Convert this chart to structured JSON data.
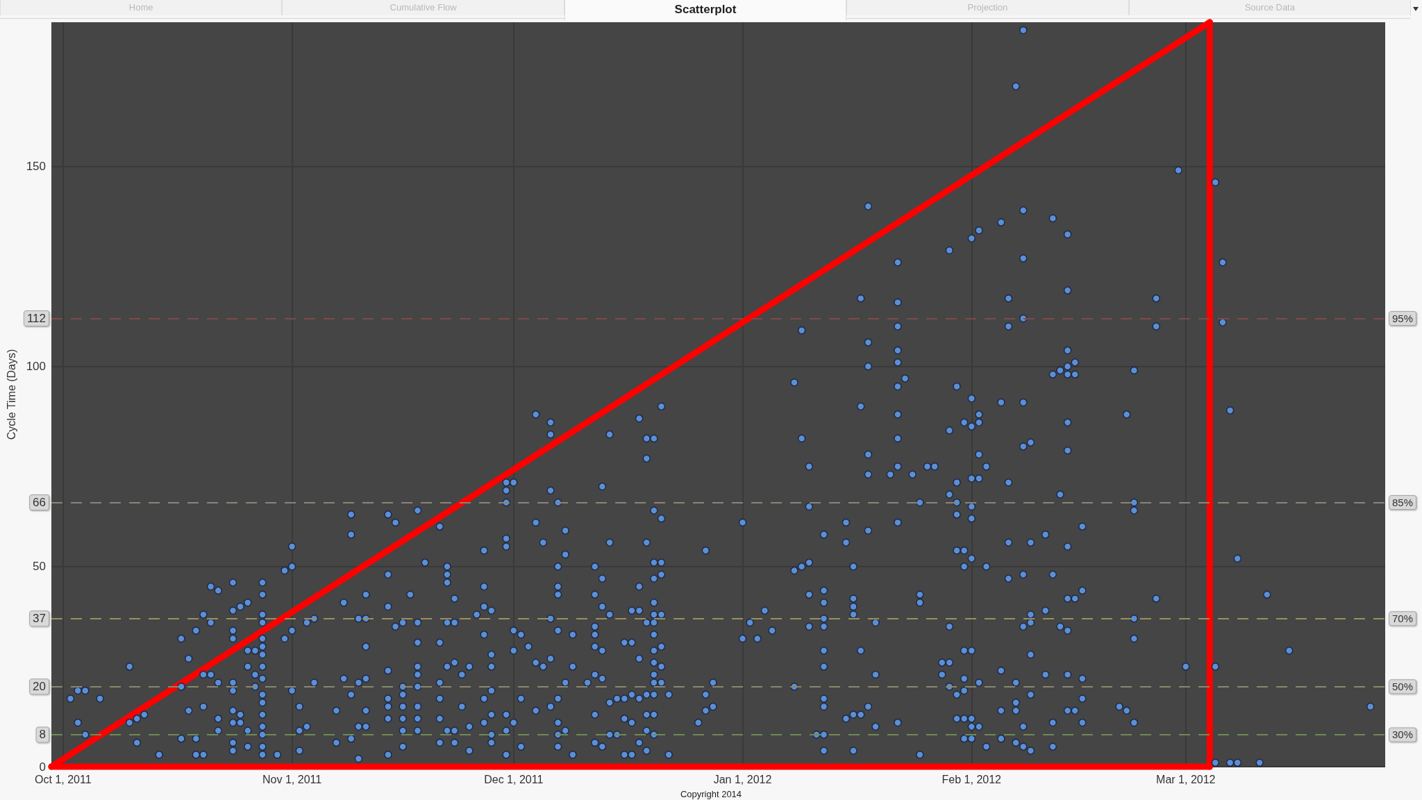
{
  "chart_data": {
    "type": "scatter",
    "title": "Scatterplot",
    "ylabel": "Cycle Time (Days)",
    "annotations": [
      "Home",
      "Cumulative Flow",
      "Projection",
      "Source Data",
      "Copyright 2014",
      {
        "text": "95%",
        "x": "2012-03-28",
        "y": 112
      },
      {
        "text": "85%",
        "x": "2012-03-28",
        "y": 66
      },
      {
        "text": "70%",
        "x": "2012-03-28",
        "y": 37
      },
      {
        "text": "50%",
        "x": "2012-03-28",
        "y": 20
      },
      {
        "text": "30%",
        "x": "2012-03-28",
        "y": 8
      }
    ],
    "xlim": [
      "2011-09-29T10:00",
      "2012-03-28"
    ],
    "xticks": [
      {
        "value": "2011-10-01",
        "label": "Oct 1, 2011"
      },
      {
        "value": "2011-11-01",
        "label": "Nov 1, 2011"
      },
      {
        "value": "2011-12-01",
        "label": "Dec 1, 2011"
      },
      {
        "value": "2012-01-01",
        "label": "Jan 1, 2012"
      },
      {
        "value": "2012-02-01",
        "label": "Feb 1, 2012"
      },
      {
        "value": "2012-03-01",
        "label": "Mar 1, 2012"
      }
    ],
    "ylim": [
      0,
      186
    ],
    "yticks": [
      0,
      50,
      100,
      150
    ],
    "grid": true,
    "marker": "circle",
    "ref_lines": [
      {
        "axis": "y",
        "value": 112,
        "label": "112",
        "color": "#7d4b4b",
        "line_style": "dashed"
      },
      {
        "axis": "y",
        "value": 66,
        "label": "66",
        "color": "#8a8478",
        "line_style": "dashed"
      },
      {
        "axis": "y",
        "value": 37,
        "label": "37",
        "color": "#9a9060",
        "line_style": "dashed"
      },
      {
        "axis": "y",
        "value": 20,
        "label": "20",
        "color": "#88876e",
        "line_style": "dashed"
      },
      {
        "axis": "y",
        "value": 8,
        "label": "8",
        "color": "#6f8a55",
        "line_style": "dashed"
      }
    ],
    "series": [
      {
        "color": "#5b8fd6",
        "x": [
          "2011-10-02",
          "2011-10-03",
          "2011-10-03",
          "2011-10-04",
          "2011-10-04",
          "2011-10-06",
          "2011-10-10",
          "2011-10-10",
          "2011-10-11",
          "2011-10-11",
          "2011-10-12",
          "2011-10-14",
          "2011-10-17",
          "2011-10-17",
          "2011-10-17",
          "2011-10-18",
          "2011-10-18",
          "2011-10-19",
          "2011-10-19",
          "2011-10-19",
          "2011-10-20",
          "2011-10-20",
          "2011-10-20",
          "2011-10-20",
          "2011-10-21",
          "2011-10-21",
          "2011-10-21",
          "2011-10-22",
          "2011-10-22",
          "2011-10-22",
          "2011-10-22",
          "2011-10-24",
          "2011-10-24",
          "2011-10-24",
          "2011-10-24",
          "2011-10-24",
          "2011-10-24",
          "2011-10-24",
          "2011-10-24",
          "2011-10-24",
          "2011-10-24",
          "2011-10-25",
          "2011-10-25",
          "2011-10-25",
          "2011-10-26",
          "2011-10-26",
          "2011-10-26",
          "2011-10-26",
          "2011-10-26",
          "2011-10-27",
          "2011-10-27",
          "2011-10-27",
          "2011-10-28",
          "2011-10-28",
          "2011-10-28",
          "2011-10-28",
          "2011-10-28",
          "2011-10-28",
          "2011-10-28",
          "2011-10-28",
          "2011-10-28",
          "2011-10-28",
          "2011-10-28",
          "2011-10-28",
          "2011-10-28",
          "2011-10-28",
          "2011-10-28",
          "2011-10-28",
          "2011-10-30",
          "2011-10-31",
          "2011-10-31",
          "2011-11-01",
          "2011-11-01",
          "2011-11-01",
          "2011-11-01",
          "2011-11-02",
          "2011-11-02",
          "2011-11-02",
          "2011-11-03",
          "2011-11-03",
          "2011-11-04",
          "2011-11-04",
          "2011-11-07",
          "2011-11-07",
          "2011-11-08",
          "2011-11-08",
          "2011-11-09",
          "2011-11-09",
          "2011-11-09",
          "2011-11-09",
          "2011-11-10",
          "2011-11-10",
          "2011-11-10",
          "2011-11-10",
          "2011-11-11",
          "2011-11-11",
          "2011-11-11",
          "2011-11-11",
          "2011-11-11",
          "2011-11-11",
          "2011-11-14",
          "2011-11-14",
          "2011-11-14",
          "2011-11-14",
          "2011-11-14",
          "2011-11-14",
          "2011-11-14",
          "2011-11-14",
          "2011-11-15",
          "2011-11-15",
          "2011-11-16",
          "2011-11-16",
          "2011-11-16",
          "2011-11-16",
          "2011-11-16",
          "2011-11-16",
          "2011-11-16",
          "2011-11-17",
          "2011-11-18",
          "2011-11-18",
          "2011-11-18",
          "2011-11-18",
          "2011-11-18",
          "2011-11-18",
          "2011-11-18",
          "2011-11-18",
          "2011-11-18",
          "2011-11-19",
          "2011-11-21",
          "2011-11-21",
          "2011-11-21",
          "2011-11-21",
          "2011-11-21",
          "2011-11-21",
          "2011-11-22",
          "2011-11-22",
          "2011-11-22",
          "2011-11-22",
          "2011-11-22",
          "2011-11-22",
          "2011-11-23",
          "2011-11-23",
          "2011-11-23",
          "2011-11-23",
          "2011-11-23",
          "2011-11-24",
          "2011-11-24",
          "2011-11-25",
          "2011-11-25",
          "2011-11-25",
          "2011-11-26",
          "2011-11-27",
          "2011-11-27",
          "2011-11-27",
          "2011-11-27",
          "2011-11-27",
          "2011-11-27",
          "2011-11-28",
          "2011-11-28",
          "2011-11-28",
          "2011-11-28",
          "2011-11-28",
          "2011-11-28",
          "2011-11-28",
          "2011-11-30",
          "2011-11-30",
          "2011-11-30",
          "2011-11-30",
          "2011-11-30",
          "2011-11-30",
          "2011-11-30",
          "2011-11-30",
          "2011-12-01",
          "2011-12-01",
          "2011-12-01",
          "2011-12-01",
          "2011-12-02",
          "2011-12-02",
          "2011-12-02",
          "2011-12-03",
          "2011-12-04",
          "2011-12-04",
          "2011-12-04",
          "2011-12-04",
          "2011-12-05",
          "2011-12-05",
          "2011-12-06",
          "2011-12-06",
          "2011-12-06",
          "2011-12-06",
          "2011-12-06",
          "2011-12-06",
          "2011-12-07",
          "2011-12-07",
          "2011-12-07",
          "2011-12-07",
          "2011-12-07",
          "2011-12-07",
          "2011-12-07",
          "2011-12-07",
          "2011-12-07",
          "2011-12-08",
          "2011-12-08",
          "2011-12-08",
          "2011-12-08",
          "2011-12-09",
          "2011-12-09",
          "2011-12-09",
          "2011-12-11",
          "2011-12-12",
          "2011-12-12",
          "2011-12-12",
          "2011-12-12",
          "2011-12-12",
          "2011-12-12",
          "2011-12-12",
          "2011-12-12",
          "2011-12-13",
          "2011-12-13",
          "2011-12-13",
          "2011-12-13",
          "2011-12-13",
          "2011-12-13",
          "2011-12-14",
          "2011-12-14",
          "2011-12-14",
          "2011-12-14",
          "2011-12-14",
          "2011-12-15",
          "2011-12-15",
          "2011-12-16",
          "2011-12-16",
          "2011-12-16",
          "2011-12-16",
          "2011-12-17",
          "2011-12-17",
          "2011-12-17",
          "2011-12-17",
          "2011-12-17",
          "2011-12-18",
          "2011-12-18",
          "2011-12-18",
          "2011-12-18",
          "2011-12-18",
          "2011-12-18",
          "2011-12-19",
          "2011-12-19",
          "2011-12-19",
          "2011-12-19",
          "2011-12-19",
          "2011-12-19",
          "2011-12-19",
          "2011-12-19",
          "2011-12-20",
          "2011-12-20",
          "2011-12-20",
          "2011-12-20",
          "2011-12-20",
          "2011-12-20",
          "2011-12-20",
          "2011-12-20",
          "2011-12-20",
          "2011-12-20",
          "2011-12-20",
          "2011-12-20",
          "2011-12-20",
          "2011-12-20",
          "2011-12-20",
          "2011-12-21",
          "2011-12-21",
          "2011-12-21",
          "2011-12-21",
          "2011-12-21",
          "2011-12-21",
          "2011-12-21",
          "2011-12-21",
          "2011-12-22",
          "2011-12-22",
          "2011-12-26",
          "2011-12-27",
          "2011-12-27",
          "2011-12-27",
          "2011-12-28",
          "2011-12-28",
          "2012-01-01",
          "2012-01-01",
          "2012-01-02",
          "2012-01-03",
          "2012-01-04",
          "2012-01-05",
          "2012-01-08",
          "2012-01-08",
          "2012-01-08",
          "2012-01-09",
          "2012-01-09",
          "2012-01-09",
          "2012-01-10",
          "2012-01-10",
          "2012-01-10",
          "2012-01-10",
          "2012-01-10",
          "2012-01-11",
          "2012-01-12",
          "2012-01-12",
          "2012-01-12",
          "2012-01-12",
          "2012-01-12",
          "2012-01-12",
          "2012-01-12",
          "2012-01-12",
          "2012-01-12",
          "2012-01-12",
          "2012-01-12",
          "2012-01-15",
          "2012-01-15",
          "2012-01-15",
          "2012-01-16",
          "2012-01-16",
          "2012-01-16",
          "2012-01-16",
          "2012-01-16",
          "2012-01-16",
          "2012-01-17",
          "2012-01-17",
          "2012-01-17",
          "2012-01-17",
          "2012-01-18",
          "2012-01-18",
          "2012-01-18",
          "2012-01-18",
          "2012-01-18",
          "2012-01-18",
          "2012-01-18",
          "2012-01-19",
          "2012-01-19",
          "2012-01-19",
          "2012-01-21",
          "2012-01-22",
          "2012-01-22",
          "2012-01-22",
          "2012-01-22",
          "2012-01-22",
          "2012-01-22",
          "2012-01-22",
          "2012-01-22",
          "2012-01-22",
          "2012-01-22",
          "2012-01-22",
          "2012-01-23",
          "2012-01-24",
          "2012-01-25",
          "2012-01-25",
          "2012-01-25",
          "2012-01-25",
          "2012-01-26",
          "2012-01-27",
          "2012-01-28",
          "2012-01-28",
          "2012-01-29",
          "2012-01-29",
          "2012-01-29",
          "2012-01-29",
          "2012-01-29",
          "2012-01-29",
          "2012-01-30",
          "2012-01-30",
          "2012-01-30",
          "2012-01-30",
          "2012-01-30",
          "2012-01-30",
          "2012-01-30",
          "2012-01-31",
          "2012-01-31",
          "2012-01-31",
          "2012-01-31",
          "2012-01-31",
          "2012-01-31",
          "2012-01-31",
          "2012-01-31",
          "2012-02-01",
          "2012-02-01",
          "2012-02-01",
          "2012-02-01",
          "2012-02-01",
          "2012-02-01",
          "2012-02-01",
          "2012-02-01",
          "2012-02-01",
          "2012-02-01",
          "2012-02-01",
          "2012-02-02",
          "2012-02-02",
          "2012-02-02",
          "2012-02-02",
          "2012-02-02",
          "2012-02-02",
          "2012-02-02",
          "2012-02-03",
          "2012-02-03",
          "2012-02-03",
          "2012-02-05",
          "2012-02-05",
          "2012-02-05",
          "2012-02-05",
          "2012-02-05",
          "2012-02-06",
          "2012-02-06",
          "2012-02-06",
          "2012-02-06",
          "2012-02-06",
          "2012-02-07",
          "2012-02-07",
          "2012-02-07",
          "2012-02-07",
          "2012-02-07",
          "2012-02-08",
          "2012-02-08",
          "2012-02-08",
          "2012-02-08",
          "2012-02-08",
          "2012-02-08",
          "2012-02-08",
          "2012-02-08",
          "2012-02-08",
          "2012-02-08",
          "2012-02-09",
          "2012-02-09",
          "2012-02-09",
          "2012-02-09",
          "2012-02-09",
          "2012-02-09",
          "2012-02-09",
          "2012-02-11",
          "2012-02-11",
          "2012-02-11",
          "2012-02-12",
          "2012-02-12",
          "2012-02-12",
          "2012-02-12",
          "2012-02-12",
          "2012-02-13",
          "2012-02-13",
          "2012-02-13",
          "2012-02-14",
          "2012-02-14",
          "2012-02-14",
          "2012-02-14",
          "2012-02-14",
          "2012-02-14",
          "2012-02-14",
          "2012-02-14",
          "2012-02-14",
          "2012-02-14",
          "2012-02-14",
          "2012-02-14",
          "2012-02-15",
          "2012-02-15",
          "2012-02-15",
          "2012-02-15",
          "2012-02-16",
          "2012-02-16",
          "2012-02-16",
          "2012-02-16",
          "2012-02-16",
          "2012-02-21",
          "2012-02-22",
          "2012-02-22",
          "2012-02-23",
          "2012-02-23",
          "2012-02-23",
          "2012-02-23",
          "2012-02-23",
          "2012-02-23",
          "2012-02-26",
          "2012-02-26",
          "2012-02-26",
          "2012-02-29",
          "2012-03-01",
          "2012-03-05",
          "2012-03-05",
          "2012-03-05",
          "2012-03-06",
          "2012-03-06",
          "2012-03-07",
          "2012-03-07",
          "2012-03-08",
          "2012-03-08",
          "2012-03-11",
          "2012-03-12",
          "2012-03-15",
          "2012-03-26"
        ],
        "values": [
          17,
          19,
          11,
          19,
          8,
          17,
          25,
          11,
          12,
          6,
          13,
          3,
          32,
          20,
          7,
          27,
          14,
          34,
          7,
          3,
          38,
          23,
          15,
          3,
          45,
          36,
          23,
          44,
          21,
          12,
          9,
          46,
          39,
          34,
          32,
          21,
          19,
          14,
          11,
          6,
          4,
          40,
          13,
          11,
          41,
          29,
          25,
          9,
          5,
          29,
          23,
          20,
          46,
          43,
          38,
          36,
          32,
          30,
          28,
          25,
          22,
          18,
          16,
          13,
          10,
          8,
          5,
          3,
          3,
          49,
          32,
          55,
          50,
          34,
          19,
          15,
          9,
          4,
          36,
          10,
          37,
          21,
          14,
          6,
          41,
          22,
          63,
          58,
          18,
          7,
          37,
          21,
          10,
          2,
          43,
          37,
          30,
          22,
          14,
          10,
          63,
          48,
          40,
          24,
          17,
          15,
          12,
          3,
          61,
          35,
          36,
          20,
          18,
          15,
          12,
          9,
          5,
          43,
          64,
          36,
          31,
          25,
          23,
          20,
          15,
          12,
          9,
          51,
          60,
          31,
          21,
          17,
          12,
          6,
          50,
          48,
          46,
          36,
          25,
          9,
          42,
          36,
          26,
          9,
          6,
          23,
          15,
          25,
          10,
          4,
          38,
          54,
          45,
          40,
          33,
          17,
          11,
          39,
          28,
          25,
          19,
          13,
          8,
          6,
          71,
          69,
          66,
          57,
          55,
          13,
          9,
          3,
          71,
          34,
          29,
          11,
          33,
          17,
          5,
          30,
          88,
          61,
          26,
          14,
          56,
          25,
          86,
          83,
          69,
          37,
          27,
          15,
          66,
          50,
          45,
          43,
          34,
          17,
          11,
          8,
          5,
          59,
          53,
          21,
          9,
          33,
          25,
          3,
          21,
          50,
          43,
          35,
          33,
          30,
          23,
          13,
          6,
          70,
          47,
          40,
          29,
          22,
          5,
          83,
          56,
          38,
          16,
          8,
          17,
          8,
          31,
          17,
          12,
          3,
          39,
          31,
          18,
          11,
          3,
          87,
          45,
          39,
          27,
          17,
          6,
          82,
          77,
          56,
          36,
          18,
          13,
          9,
          4,
          82,
          64,
          51,
          47,
          41,
          38,
          36,
          33,
          29,
          26,
          23,
          21,
          18,
          13,
          8,
          90,
          62,
          51,
          48,
          38,
          30,
          25,
          21,
          18,
          3,
          11,
          54,
          18,
          14,
          21,
          15,
          61,
          32,
          36,
          32,
          39,
          34,
          96,
          49,
          20,
          109,
          82,
          50,
          75,
          65,
          51,
          43,
          35,
          8,
          58,
          44,
          41,
          37,
          35,
          29,
          25,
          17,
          15,
          8,
          4,
          61,
          56,
          12,
          50,
          42,
          40,
          38,
          13,
          4,
          117,
          90,
          29,
          13,
          140,
          106,
          100,
          78,
          73,
          59,
          15,
          36,
          23,
          10,
          73,
          126,
          116,
          110,
          104,
          101,
          95,
          88,
          82,
          75,
          61,
          11,
          97,
          73,
          66,
          43,
          41,
          3,
          75,
          75,
          26,
          23,
          129,
          84,
          68,
          35,
          26,
          20,
          95,
          71,
          66,
          63,
          54,
          18,
          12,
          86,
          54,
          50,
          29,
          22,
          19,
          12,
          7,
          132,
          92,
          85,
          72,
          65,
          62,
          52,
          29,
          12,
          10,
          7,
          134,
          88,
          86,
          78,
          72,
          21,
          10,
          75,
          50,
          5,
          136,
          91,
          24,
          14,
          7,
          117,
          110,
          71,
          56,
          47,
          170,
          21,
          16,
          14,
          6,
          184,
          139,
          127,
          112,
          91,
          80,
          48,
          35,
          10,
          5,
          81,
          56,
          38,
          36,
          28,
          18,
          4,
          58,
          39,
          23,
          137,
          98,
          48,
          11,
          5,
          99,
          68,
          35,
          133,
          119,
          104,
          100,
          98,
          86,
          79,
          55,
          42,
          34,
          23,
          14,
          101,
          98,
          42,
          14,
          60,
          44,
          22,
          17,
          11,
          15,
          88,
          14,
          99,
          66,
          64,
          37,
          32,
          11,
          117,
          110,
          42,
          149,
          25,
          146,
          25,
          1,
          126,
          111,
          89,
          1,
          52,
          1,
          1,
          43,
          29,
          15
        ]
      },
      {
        "type": "line",
        "color": "#ff0000",
        "marker": "none",
        "x": [
          "2011-09-29T10:00",
          "2012-03-04T06:00"
        ],
        "values": [
          0,
          186
        ]
      },
      {
        "type": "line",
        "color": "#ff0000",
        "marker": "none",
        "x": [
          "2012-03-04T06:00",
          "2012-03-04T06:00"
        ],
        "values": [
          186,
          0
        ]
      },
      {
        "type": "line",
        "color": "#ff0000",
        "marker": "none",
        "x": [
          "2011-09-29T10:00",
          "2012-03-04T06:00"
        ],
        "values": [
          0,
          0
        ]
      }
    ]
  }
}
